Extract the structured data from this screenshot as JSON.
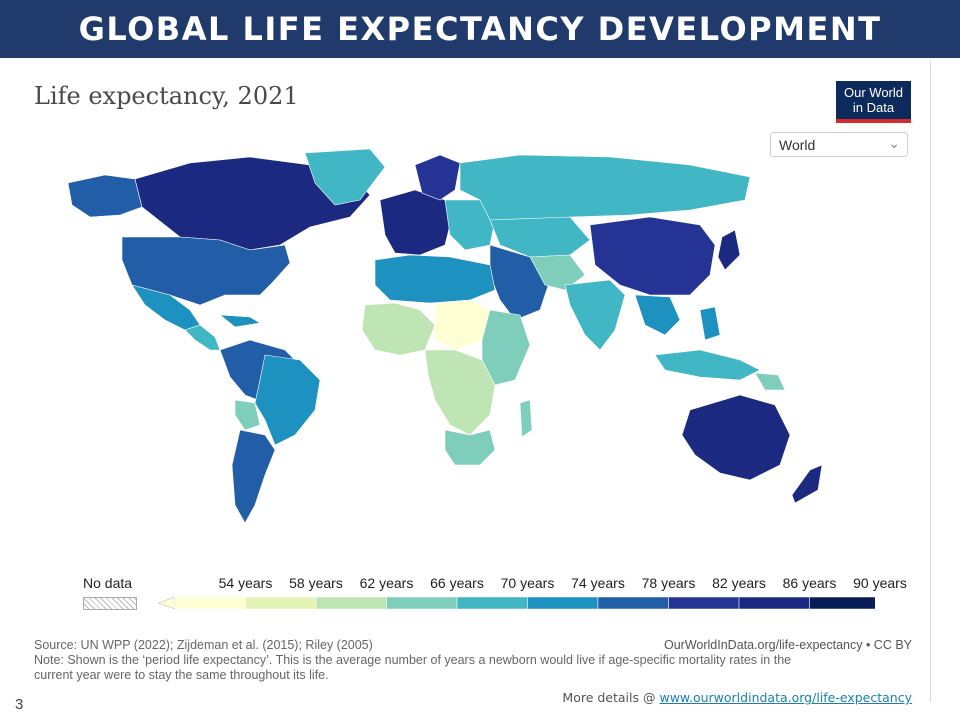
{
  "slide": {
    "title": "GLOBAL LIFE EXPECTANCY DEVELOPMENT",
    "page_number": "3",
    "more_details_prefix": "More details @ ",
    "more_details_link": "www.ourworldindata.org/life-expectancy"
  },
  "chart": {
    "title": "Life expectancy, 2021",
    "logo_line1": "Our World",
    "logo_line2": "in Data",
    "region_select": "World"
  },
  "legend": {
    "no_data": "No data",
    "labels": [
      "54 years",
      "58 years",
      "62 years",
      "66 years",
      "70 years",
      "74 years",
      "78 years",
      "82 years",
      "86 years",
      "90 years"
    ],
    "colors": [
      "#ffffd4",
      "#e4f4b4",
      "#bfe5b5",
      "#7fcdbb",
      "#41b6c4",
      "#1d91c0",
      "#225ea8",
      "#253494",
      "#1b2a80",
      "#081d58"
    ]
  },
  "footer": {
    "source": "Source: UN WPP (2022); Zijdeman et al. (2015); Riley (2005)",
    "note_line1": "Note: Shown is the ‘period life expectancy’. This is the average number of years a newborn would live if age-specific mortality rates in the",
    "note_line2": "current year were to stay the same throughout its life.",
    "credit": "OurWorldInData.org/life-expectancy • CC BY"
  },
  "chart_data": {
    "type": "choropleth",
    "title": "Life expectancy, 2021",
    "unit": "years",
    "bins": [
      54,
      58,
      62,
      66,
      70,
      74,
      78,
      82,
      86,
      90
    ]
  }
}
